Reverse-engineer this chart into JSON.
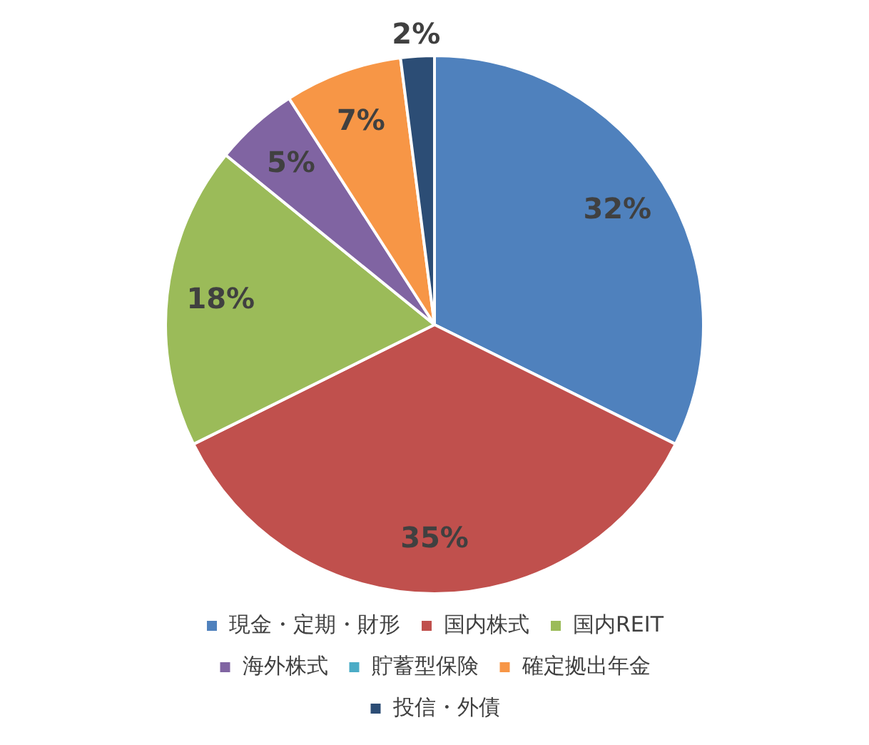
{
  "chart_data": {
    "type": "pie",
    "categories": [
      "現金・定期・財形",
      "国内株式",
      "国内REIT",
      "海外株式",
      "貯蓄型保険",
      "確定拠出年金",
      "投信・外債"
    ],
    "values": [
      32,
      35,
      18,
      5,
      0,
      7,
      2
    ],
    "colors": [
      "#4f81bd",
      "#c0504d",
      "#9bbb59",
      "#8064a2",
      "#4bacc6",
      "#f79646",
      "#2c4d75"
    ],
    "value_labels": [
      "32%",
      "35%",
      "18%",
      "5%",
      null,
      "7%",
      "2%"
    ],
    "legend": "bottom"
  }
}
